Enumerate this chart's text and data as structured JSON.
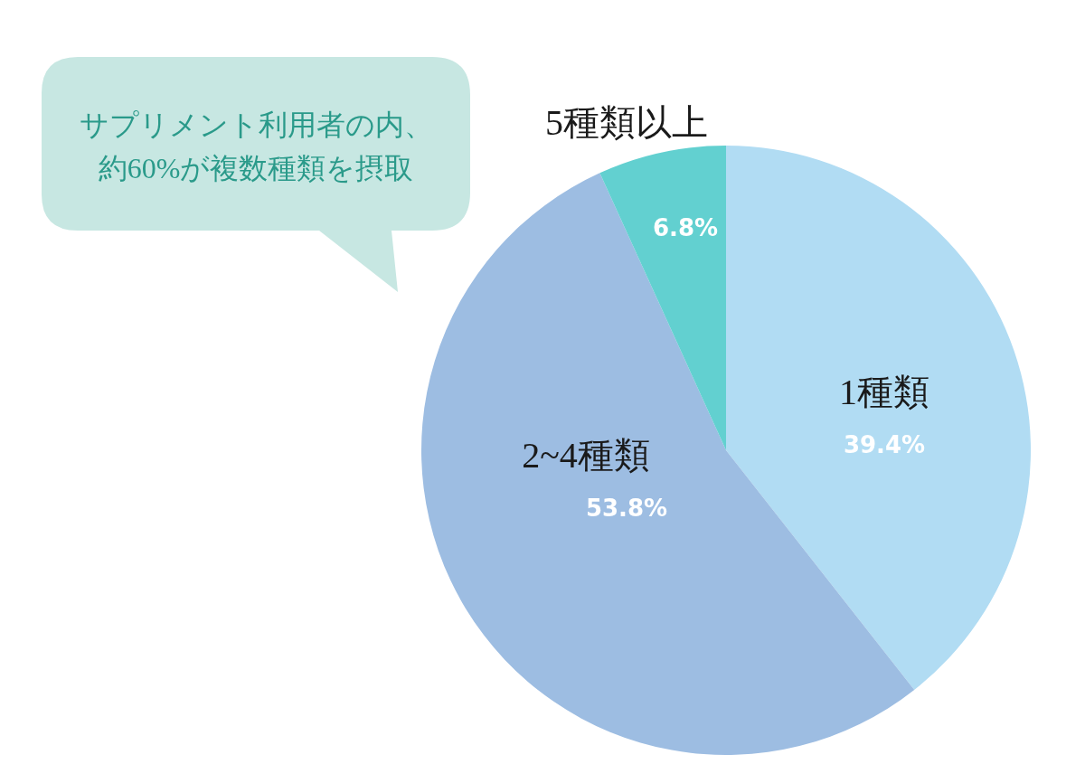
{
  "chart_data": {
    "type": "pie",
    "categories": [
      "1種類",
      "2~4種類",
      "5種類以上"
    ],
    "values": [
      39.4,
      53.8,
      6.8
    ],
    "colors": [
      "#b1dcf3",
      "#9dbde2",
      "#62d0d0"
    ],
    "value_labels": [
      "39.4%",
      "53.8%",
      "6.8%"
    ],
    "annotations": [
      "サプリメント利用者の内、",
      "約60%が複数種類を摂取"
    ]
  }
}
